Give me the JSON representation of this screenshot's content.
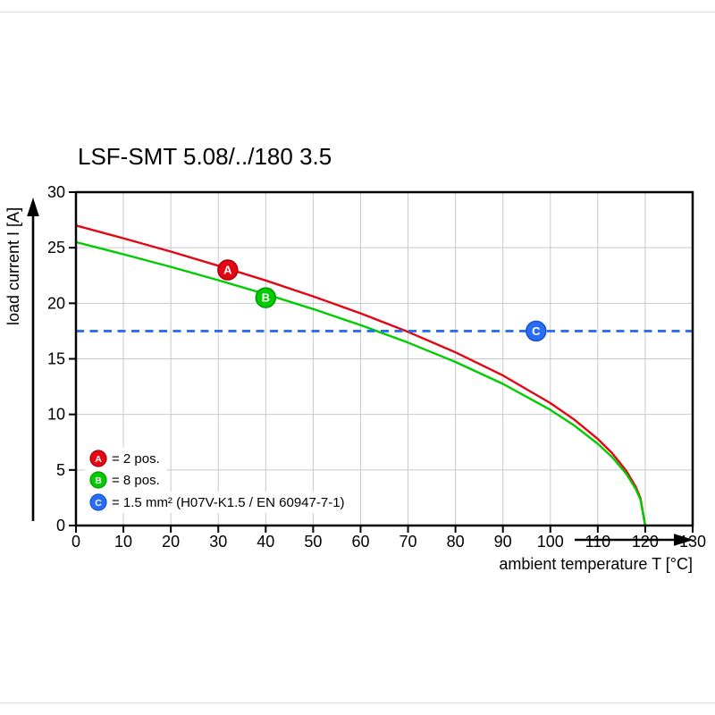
{
  "chart_data": {
    "type": "line",
    "title": "LSF-SMT 5.08/../180 3.5",
    "xlabel": "ambient temperature T [°C]",
    "ylabel": "load current I [A]",
    "xlim": [
      0,
      130
    ],
    "ylim": [
      0,
      30
    ],
    "x_ticks": [
      0,
      10,
      20,
      30,
      40,
      50,
      60,
      70,
      80,
      90,
      100,
      110,
      120,
      130
    ],
    "y_ticks": [
      0,
      5,
      10,
      15,
      20,
      25,
      30
    ],
    "grid": true,
    "grid_color": "#c9c9c9",
    "axis_color": "#000000",
    "legend_position": "bottom-left-inside",
    "series": [
      {
        "id": "A",
        "legend_label": "= 2 pos.",
        "type": "line",
        "color": "#e30613",
        "marker_edge": "#a8000c",
        "marker": {
          "x": 32,
          "y": 23
        },
        "x": [
          0,
          10,
          20,
          30,
          40,
          50,
          60,
          70,
          80,
          90,
          100,
          105,
          110,
          113,
          116,
          118,
          119,
          120
        ],
        "y": [
          27,
          25.85,
          24.65,
          23.38,
          22.05,
          20.62,
          19.09,
          17.43,
          15.59,
          13.5,
          11.02,
          9.55,
          7.79,
          6.52,
          4.93,
          3.49,
          2.46,
          0
        ]
      },
      {
        "id": "B",
        "legend_label": "= 8 pos.",
        "type": "line",
        "color": "#00cc00",
        "marker_edge": "#009a00",
        "marker": {
          "x": 40,
          "y": 20.5
        },
        "x": [
          0,
          10,
          20,
          30,
          40,
          50,
          60,
          70,
          80,
          90,
          100,
          105,
          110,
          113,
          116,
          118,
          119,
          120
        ],
        "y": [
          25.5,
          24.41,
          23.28,
          22.08,
          20.82,
          19.48,
          18.03,
          16.46,
          14.72,
          12.75,
          10.41,
          9.02,
          7.36,
          6.16,
          4.66,
          3.29,
          2.33,
          0
        ]
      },
      {
        "id": "C",
        "legend_label": "= 1.5 mm² (H07V-K1.5 / EN 60947-7-1)",
        "type": "hline-dashed",
        "color": "#2a6df5",
        "marker_edge": "#1b4fd0",
        "marker": {
          "x": 97,
          "y": 17.5
        },
        "value": 17.5
      }
    ]
  }
}
